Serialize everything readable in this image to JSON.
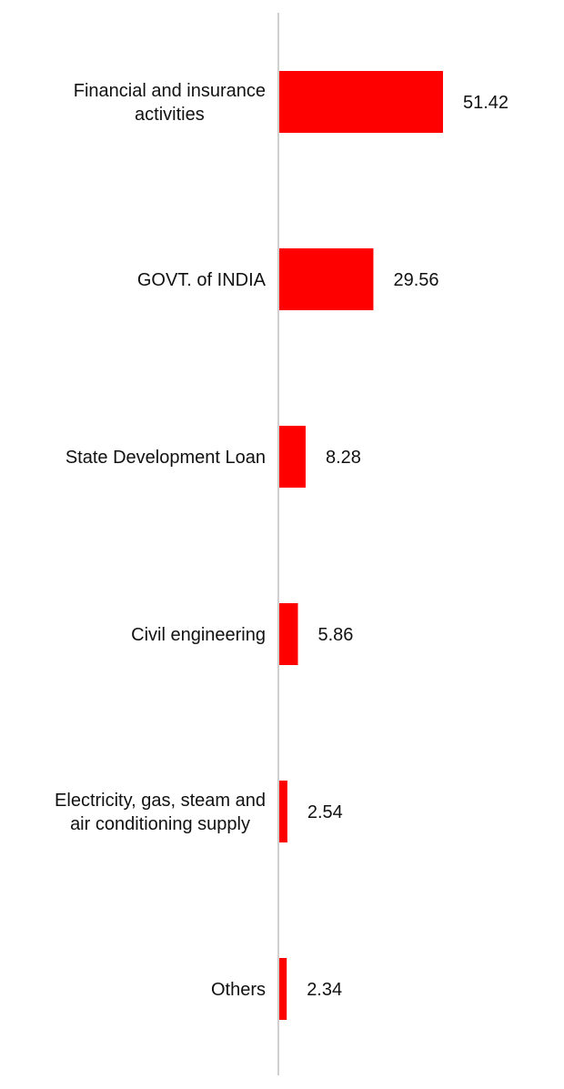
{
  "chart_data": {
    "type": "bar",
    "orientation": "horizontal",
    "title": "",
    "xlabel": "",
    "ylabel": "",
    "categories": [
      [
        "Financial and insurance",
        "activities"
      ],
      [
        "GOVT. of INDIA"
      ],
      [
        "State Development Loan"
      ],
      [
        "Civil engineering"
      ],
      [
        "Electricity, gas, steam and",
        "air conditioning supply"
      ],
      [
        "Others"
      ]
    ],
    "values": [
      51.42,
      29.56,
      8.28,
      5.86,
      2.54,
      2.34
    ],
    "value_labels": [
      "51.42",
      "29.56",
      "8.28",
      "5.86",
      "2.54",
      "2.34"
    ],
    "xlim": [
      0,
      100
    ],
    "bar_color": "#ff0000",
    "axis_color": "#d0d0d0",
    "grid": false,
    "legend": "none"
  }
}
